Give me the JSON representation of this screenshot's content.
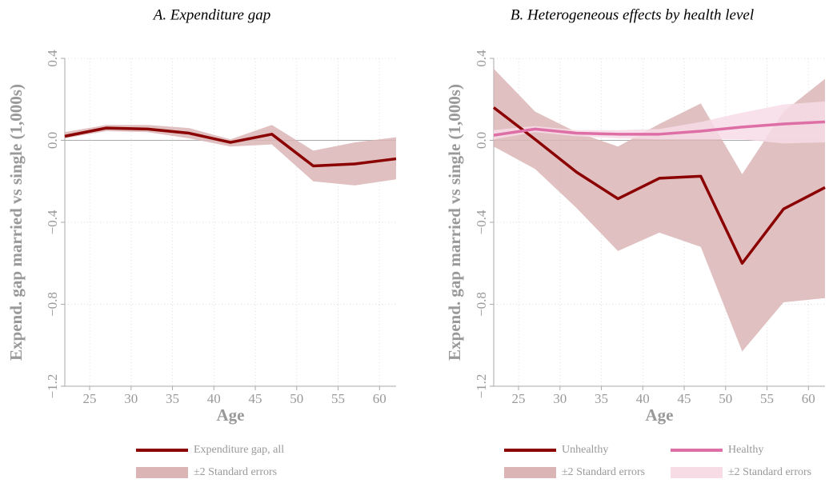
{
  "chart_data": [
    {
      "type": "line",
      "title": "A. Expenditure gap",
      "xlabel": "Age",
      "ylabel": "Expend. gap married vs single (1,000s)",
      "x": [
        22,
        27,
        32,
        37,
        42,
        47,
        52,
        57,
        62
      ],
      "xlim": [
        22,
        62
      ],
      "xticks": [
        25,
        30,
        35,
        40,
        45,
        50,
        55,
        60
      ],
      "ylim": [
        -1.2,
        0.4
      ],
      "yticks": [
        {
          "value": -1.2,
          "label": "−1.2"
        },
        {
          "value": -0.8,
          "label": "−0.8"
        },
        {
          "value": -0.4,
          "label": "−0.4"
        },
        {
          "value": 0,
          "label": "0.0"
        },
        0.4
      ],
      "grid": true,
      "series": [
        {
          "name": "Expenditure gap, all",
          "color": "#8b0000",
          "values": [
            0.02,
            0.06,
            0.055,
            0.035,
            -0.01,
            0.03,
            -0.125,
            -0.115,
            -0.09
          ],
          "band": {
            "name": "±2 Standard errors",
            "color": "#dbb5b5",
            "upper": [
              0.04,
              0.075,
              0.075,
              0.06,
              0.005,
              0.075,
              -0.05,
              -0.01,
              0.015
            ],
            "lower": [
              0.01,
              0.045,
              0.04,
              0.01,
              -0.03,
              -0.02,
              -0.2,
              -0.22,
              -0.19
            ]
          }
        }
      ]
    },
    {
      "type": "line",
      "title": "B. Heterogeneous effects by health level",
      "xlabel": "Age",
      "ylabel": "Expend. gap married vs single (1,000s)",
      "x": [
        22,
        27,
        32,
        37,
        42,
        47,
        52,
        57,
        62
      ],
      "xlim": [
        22,
        62
      ],
      "xticks": [
        25,
        30,
        35,
        40,
        45,
        50,
        55,
        60
      ],
      "ylim": [
        -1.2,
        0.4
      ],
      "yticks": [
        {
          "value": -1.2,
          "label": "−1.2"
        },
        {
          "value": -0.8,
          "label": "−0.8"
        },
        {
          "value": -0.4,
          "label": "−0.4"
        },
        {
          "value": 0,
          "label": "0.0"
        },
        0.4
      ],
      "grid": true,
      "series": [
        {
          "name": "Unhealthy",
          "color": "#8b0000",
          "values": [
            0.16,
            0.005,
            -0.155,
            -0.285,
            -0.185,
            -0.175,
            -0.6,
            -0.335,
            -0.23
          ],
          "band": {
            "name": "±2 Standard errors",
            "color": "#dbb5b5",
            "upper": [
              0.35,
              0.14,
              0.04,
              -0.03,
              0.08,
              0.18,
              -0.165,
              0.14,
              0.3
            ],
            "lower": [
              -0.03,
              -0.14,
              -0.33,
              -0.54,
              -0.45,
              -0.52,
              -1.03,
              -0.79,
              -0.77
            ]
          }
        },
        {
          "name": "Healthy",
          "color": "#de6fa6",
          "values": [
            0.025,
            0.055,
            0.035,
            0.03,
            0.03,
            0.045,
            0.065,
            0.08,
            0.09
          ],
          "band": {
            "name": "±2 Standard errors",
            "color": "#f7dce6",
            "upper": [
              0.05,
              0.07,
              0.05,
              0.05,
              0.055,
              0.09,
              0.135,
              0.175,
              0.19
            ],
            "lower": [
              0.005,
              0.04,
              0.02,
              0.01,
              0.005,
              0.005,
              0.005,
              -0.015,
              -0.01
            ]
          }
        }
      ]
    }
  ]
}
